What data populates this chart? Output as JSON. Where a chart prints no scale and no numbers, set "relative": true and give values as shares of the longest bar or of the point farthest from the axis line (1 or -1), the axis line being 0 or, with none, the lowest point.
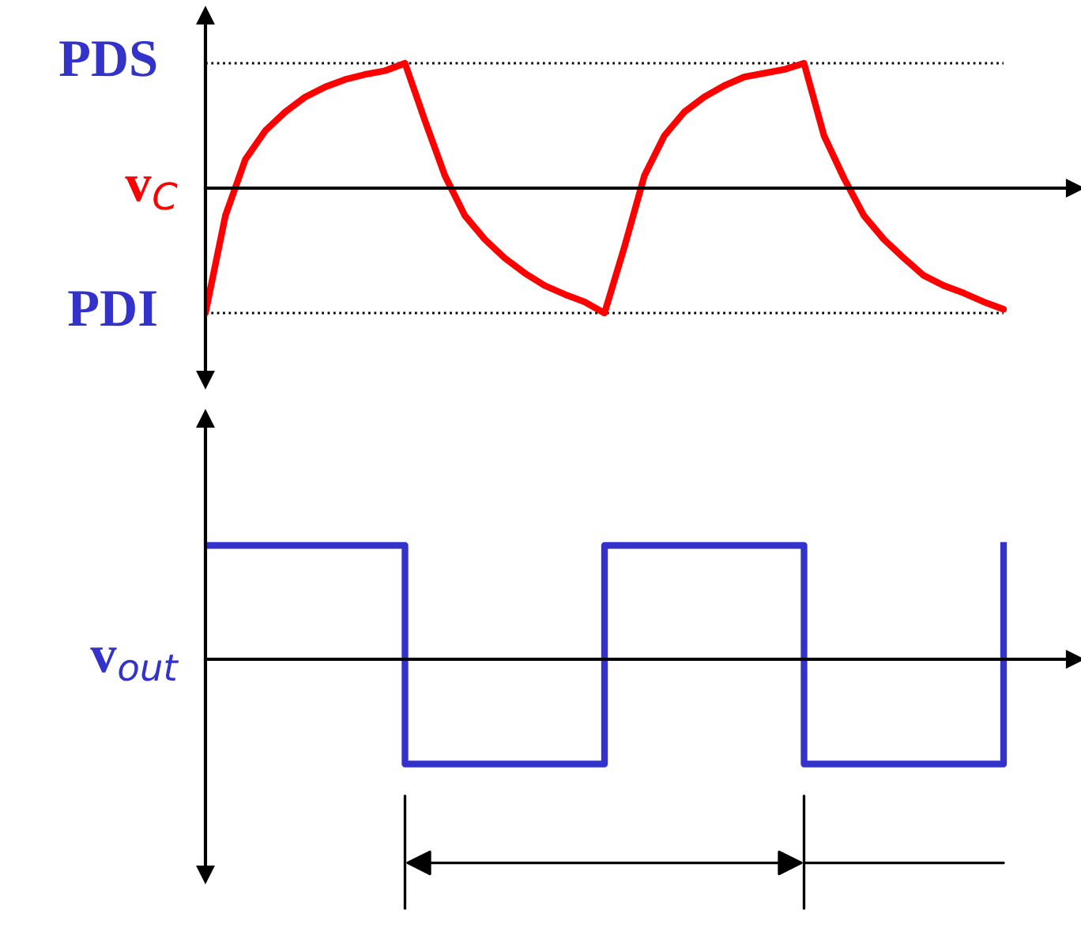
{
  "chart_data": [
    {
      "type": "line",
      "relative": true,
      "ylabel": "v$_{C}$",
      "categories": [
        null,
        null,
        null,
        null,
        null,
        null,
        null,
        null,
        null,
        null,
        null,
        null,
        null,
        null,
        null,
        null,
        null,
        null,
        null,
        null,
        null,
        null,
        null,
        null,
        null,
        null,
        null,
        null,
        null,
        null,
        null,
        null,
        null,
        null,
        null,
        null,
        null,
        null,
        null,
        null,
        null
      ],
      "series": [
        {
          "color": "#ff0000",
          "values": [
            -1,
            -0.22,
            0.23,
            0.46,
            0.61,
            0.73,
            0.81,
            0.87,
            0.91,
            0.94,
            1,
            0.54,
            0.1,
            -0.22,
            -0.41,
            -0.56,
            -0.68,
            -0.78,
            -0.85,
            -0.91,
            -1,
            -0.47,
            0.1,
            0.42,
            0.61,
            0.73,
            0.82,
            0.89,
            0.92,
            0.95,
            1,
            0.42,
            0.08,
            -0.22,
            -0.41,
            -0.56,
            -0.7,
            -0.78,
            -0.84,
            -0.91,
            -0.97
          ]
        }
      ],
      "ref_lines": [
        {
          "axis": "y",
          "value": 1,
          "label": "PDS",
          "color": "#000000",
          "line_style": "dotted"
        },
        {
          "axis": "y",
          "value": -1,
          "label": "PDI",
          "color": "#000000",
          "line_style": "dotted"
        }
      ],
      "line_style": "solid"
    },
    {
      "type": "step",
      "relative": true,
      "ylabel": "v$_{out}$",
      "categories": [
        null,
        null,
        null,
        null,
        null,
        null,
        null,
        null,
        null,
        null,
        null,
        null,
        null,
        null,
        null,
        null,
        null,
        null,
        null,
        null,
        null,
        null,
        null,
        null,
        null,
        null,
        null,
        null,
        null,
        null,
        null,
        null,
        null,
        null,
        null,
        null,
        null,
        null,
        null,
        null,
        null
      ],
      "series": [
        {
          "color": "#3333cc",
          "values": [
            1,
            1,
            1,
            1,
            1,
            1,
            1,
            1,
            1,
            1,
            -0.92,
            -0.92,
            -0.92,
            -0.92,
            -0.92,
            -0.92,
            -0.92,
            -0.92,
            -0.92,
            -0.92,
            1,
            1,
            1,
            1,
            1,
            1,
            1,
            1,
            1,
            1,
            -0.92,
            -0.92,
            -0.92,
            -0.92,
            -0.92,
            -0.92,
            -0.92,
            -0.92,
            -0.92,
            -0.92,
            1
          ]
        }
      ],
      "line_style": "solid"
    }
  ]
}
